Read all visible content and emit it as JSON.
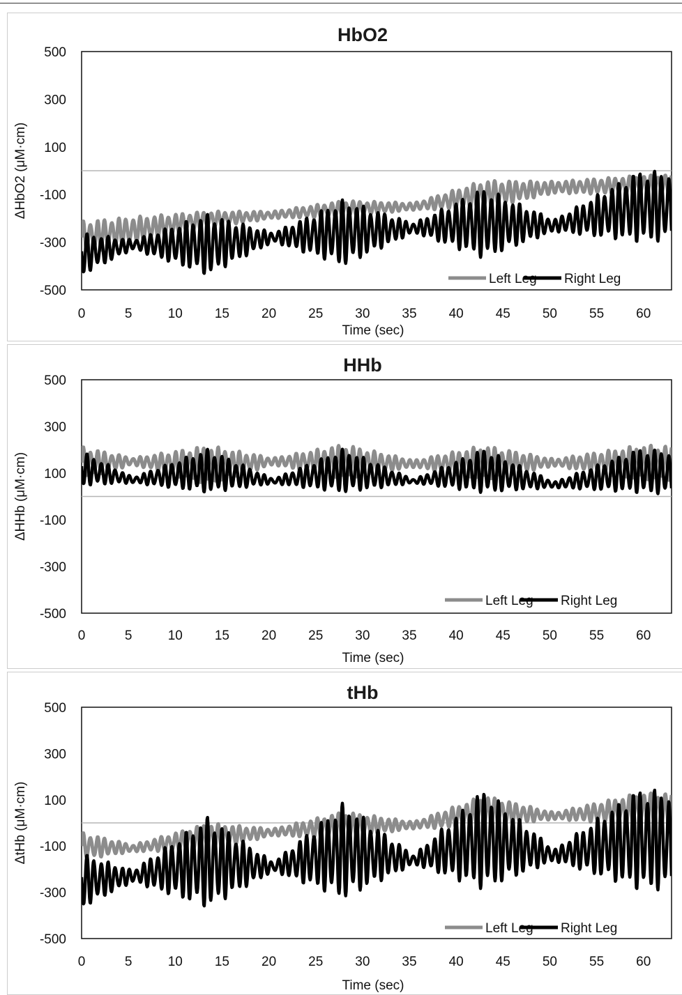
{
  "chart_data": [
    {
      "type": "line",
      "title": "HbO2",
      "xlabel": "Time (sec)",
      "ylabel": "ΔHbO2 (μM·cm)",
      "xlim": [
        0,
        63
      ],
      "ylim": [
        -500,
        500
      ],
      "xticks": [
        0,
        5,
        10,
        15,
        20,
        25,
        30,
        35,
        40,
        45,
        50,
        55,
        60
      ],
      "yticks": [
        500,
        300,
        100,
        -100,
        -300,
        -500
      ],
      "reference_line": 0,
      "legend": "bottom-right",
      "series": [
        {
          "name": "Left Leg",
          "color": "#8c8c8c",
          "x": [
            0,
            13.5,
            20.5,
            28,
            35.5,
            43,
            50.5,
            59.5,
            63
          ],
          "y": [
            -280,
            -205,
            -185,
            -160,
            -150,
            -100,
            -70,
            -60,
            -55
          ],
          "amp": [
            70,
            35,
            15,
            35,
            15,
            60,
            25,
            40,
            40
          ]
        },
        {
          "name": "Right Leg",
          "color": "#000000",
          "x": [
            0,
            5.5,
            13.5,
            20.5,
            28,
            35.5,
            43,
            50.5,
            59.5,
            63
          ],
          "y": [
            -350,
            -310,
            -310,
            -280,
            -260,
            -240,
            -220,
            -230,
            -150,
            -150
          ],
          "amp": [
            90,
            20,
            130,
            20,
            140,
            20,
            150,
            25,
            150,
            150
          ]
        }
      ]
    },
    {
      "type": "line",
      "title": "HHb",
      "xlabel": "Time (sec)",
      "ylabel": "ΔHHb (μM·cm)",
      "xlim": [
        0,
        63
      ],
      "ylim": [
        -500,
        500
      ],
      "xticks": [
        0,
        5,
        10,
        15,
        20,
        25,
        30,
        35,
        40,
        45,
        50,
        55,
        60
      ],
      "yticks": [
        500,
        300,
        100,
        -100,
        -300,
        -500
      ],
      "reference_line": 0,
      "legend": "bottom-right",
      "series": [
        {
          "name": "Left Leg",
          "color": "#8c8c8c",
          "x": [
            0,
            5.5,
            13.5,
            20.5,
            28,
            35.5,
            43,
            50.5,
            59.5,
            63
          ],
          "y": [
            145,
            150,
            135,
            150,
            150,
            140,
            145,
            145,
            145,
            145
          ],
          "amp": [
            70,
            15,
            85,
            15,
            75,
            15,
            75,
            15,
            75,
            75
          ]
        },
        {
          "name": "Right Leg",
          "color": "#000000",
          "x": [
            0,
            5.5,
            13.5,
            20.5,
            28,
            35.5,
            43,
            50.5,
            59.5,
            63
          ],
          "y": [
            120,
            70,
            110,
            65,
            110,
            65,
            110,
            50,
            110,
            100
          ],
          "amp": [
            75,
            12,
            95,
            10,
            95,
            8,
            95,
            12,
            95,
            95
          ]
        }
      ]
    },
    {
      "type": "line",
      "title": "tHb",
      "xlabel": "Time (sec)",
      "ylabel": "ΔtHb (μM·cm)",
      "xlim": [
        0,
        63
      ],
      "ylim": [
        -500,
        500
      ],
      "xticks": [
        0,
        5,
        10,
        15,
        20,
        25,
        30,
        35,
        40,
        45,
        50,
        55,
        60
      ],
      "yticks": [
        500,
        300,
        100,
        -100,
        -300,
        -500
      ],
      "reference_line": 0,
      "legend": "bottom-right",
      "series": [
        {
          "name": "Left Leg",
          "color": "#8c8c8c",
          "x": [
            0,
            5.5,
            13.5,
            20.5,
            28,
            35.5,
            43,
            50.5,
            59.5,
            63
          ],
          "y": [
            -100,
            -110,
            -60,
            -40,
            -10,
            -10,
            50,
            30,
            60,
            60
          ],
          "amp": [
            60,
            15,
            60,
            15,
            60,
            15,
            70,
            15,
            70,
            70
          ]
        },
        {
          "name": "Right Leg",
          "color": "#000000",
          "x": [
            0,
            5.5,
            13.5,
            20.5,
            28,
            35.5,
            43,
            50.5,
            59.5,
            63
          ],
          "y": [
            -250,
            -230,
            -170,
            -190,
            -120,
            -160,
            -70,
            -140,
            -70,
            -80
          ],
          "amp": [
            120,
            25,
            200,
            20,
            210,
            20,
            220,
            25,
            220,
            220
          ]
        }
      ]
    }
  ]
}
